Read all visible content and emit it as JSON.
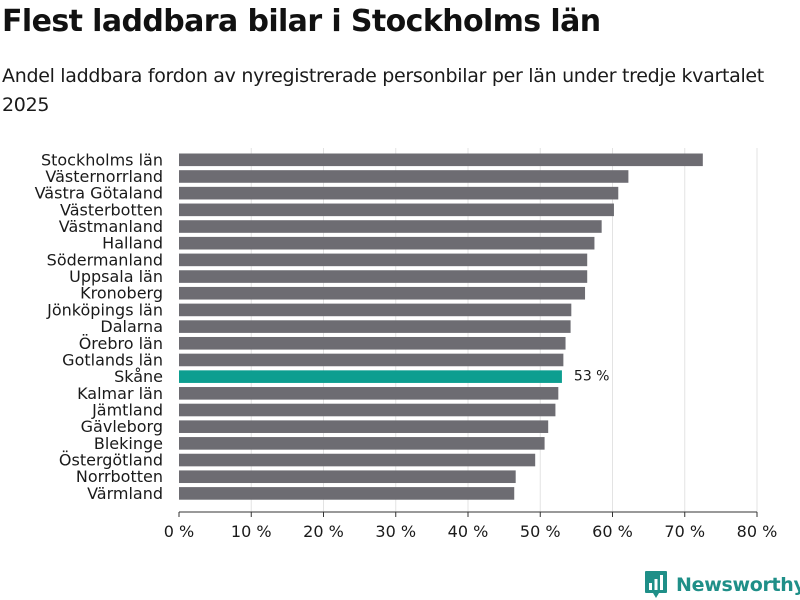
{
  "header": {
    "title": "Flest laddbara bilar i Stockholms län",
    "subtitle": "Andel laddbara fordon av nyregistrerade personbilar per län under tredje kvartalet 2025"
  },
  "branding": {
    "logo_text": "Newsworthy",
    "logo_icon": "bar-chart-speech-bubble-icon"
  },
  "colors": {
    "bar": "#6d6c72",
    "highlight": "#0d9e90",
    "grid": "#e3e3e3",
    "axis": "#333333",
    "brand": "#1f8f88"
  },
  "chart_data": {
    "type": "bar",
    "orientation": "horizontal",
    "title": "Flest laddbara bilar i Stockholms län",
    "subtitle": "Andel laddbara fordon av nyregistrerade personbilar per län under tredje kvartalet 2025",
    "xlabel": "",
    "ylabel": "",
    "xlim": [
      0,
      80
    ],
    "x_ticks": [
      0,
      10,
      20,
      30,
      40,
      50,
      60,
      70,
      80
    ],
    "x_tick_labels": [
      "0 %",
      "10 %",
      "20 %",
      "30 %",
      "40 %",
      "50 %",
      "60 %",
      "70 %",
      "80 %"
    ],
    "grid": true,
    "categories": [
      "Stockholms län",
      "Västernorrland",
      "Västra Götaland",
      "Västerbotten",
      "Västmanland",
      "Halland",
      "Södermanland",
      "Uppsala län",
      "Kronoberg",
      "Jönköpings län",
      "Dalarna",
      "Örebro län",
      "Gotlands län",
      "Skåne",
      "Kalmar län",
      "Jämtland",
      "Gävleborg",
      "Blekinge",
      "Östergötland",
      "Norrbotten",
      "Värmland"
    ],
    "values": [
      72.5,
      62.2,
      60.8,
      60.2,
      58.5,
      57.5,
      56.5,
      56.5,
      56.2,
      54.3,
      54.2,
      53.5,
      53.2,
      53.0,
      52.5,
      52.1,
      51.1,
      50.6,
      49.3,
      46.6,
      46.4
    ],
    "highlight": "Skåne",
    "annotations": [
      {
        "category": "Skåne",
        "text": "53 %"
      }
    ]
  }
}
